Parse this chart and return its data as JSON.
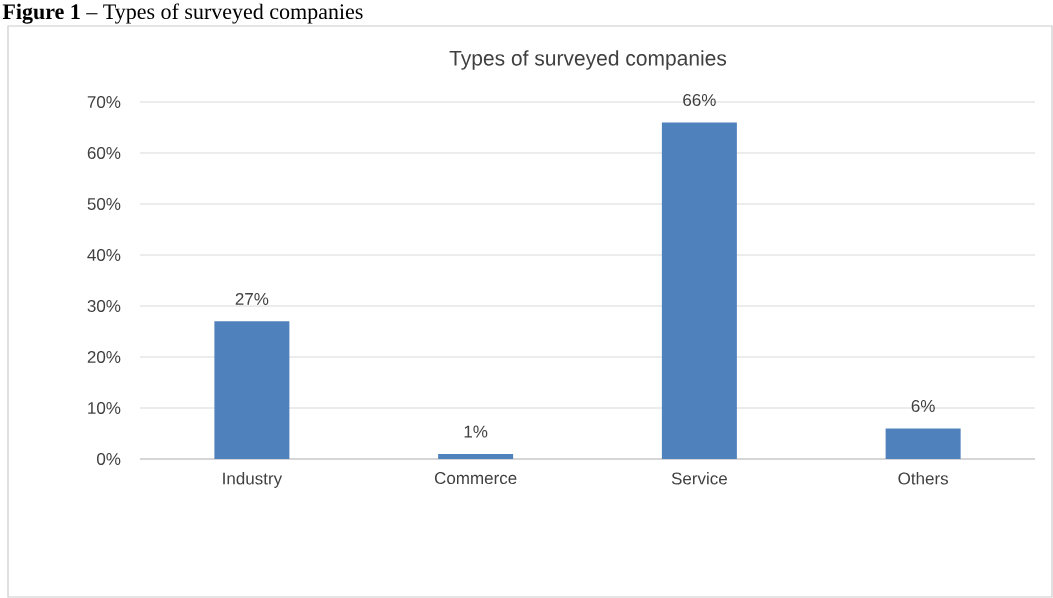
{
  "chart_data": {
    "type": "bar",
    "title": "Types of surveyed companies",
    "annotations": [
      "**Figure 1** – Types of surveyed companies"
    ],
    "categories": [
      "Industry",
      "Commerce",
      "Service",
      "Others"
    ],
    "values": [
      27,
      1,
      66,
      6
    ],
    "value_labels": [
      "27%",
      "1%",
      "66%",
      "6%"
    ],
    "color": "#4f81bd",
    "ylim": [
      0,
      70
    ],
    "yticks": [
      {
        "value": 0,
        "label": "0%"
      },
      {
        "value": 10,
        "label": "10%"
      },
      {
        "value": 20,
        "label": "20%"
      },
      {
        "value": 30,
        "label": "30%"
      },
      {
        "value": 40,
        "label": "40%"
      },
      {
        "value": 50,
        "label": "50%"
      },
      {
        "value": 60,
        "label": "60%"
      },
      {
        "value": 70,
        "label": "70%"
      }
    ],
    "grid": "y"
  }
}
